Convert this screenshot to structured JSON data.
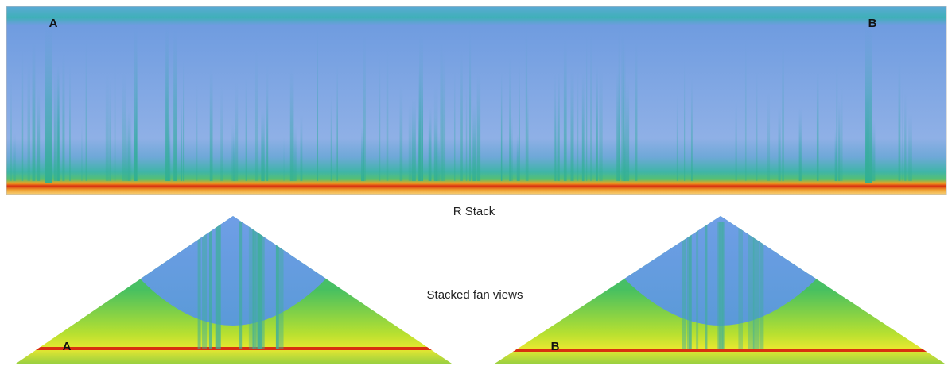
{
  "echogram": {
    "labels": [
      "A",
      "B"
    ],
    "caption": "R Stack"
  },
  "fan_views": {
    "caption": "Stacked fan views",
    "panels": [
      {
        "label": "A"
      },
      {
        "label": "B"
      }
    ]
  }
}
